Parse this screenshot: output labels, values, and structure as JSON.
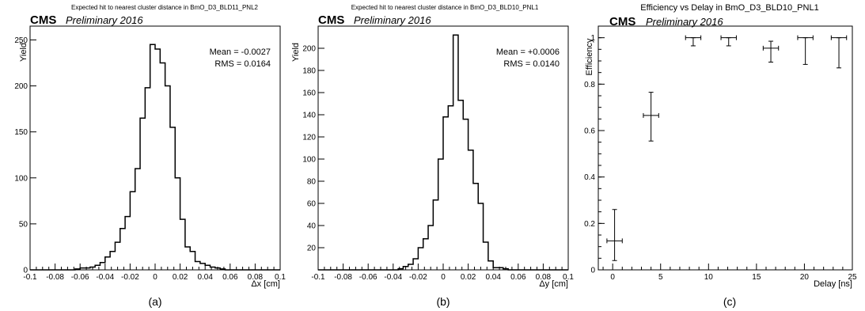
{
  "chart_data": [
    {
      "type": "histogram",
      "title": "Expected hit to nearest cluster distance in BmO_D3_BLD11_PNL2",
      "experiment": "CMS",
      "status": "Preliminary 2016",
      "xlabel": "Δx [cm]",
      "ylabel": "Yield",
      "xlim": [
        -0.1,
        0.1
      ],
      "ylim": [
        0,
        265
      ],
      "xticks": [
        "-0.1",
        "-0.08",
        "-0.06",
        "-0.04",
        "-0.02",
        "0",
        "0.02",
        "0.04",
        "0.06",
        "0.08",
        "0.1"
      ],
      "yticks": [
        "0",
        "50",
        "100",
        "150",
        "200",
        "250"
      ],
      "ytick_values": [
        0,
        50,
        100,
        150,
        200,
        250
      ],
      "stats": {
        "mean": "Mean = -0.0027",
        "rms": "RMS = 0.0164"
      },
      "bin_edges_start": -0.1,
      "bin_width": 0.004,
      "values": [
        0,
        0,
        0,
        0,
        0,
        0,
        0,
        0,
        0,
        1,
        2,
        2,
        3,
        5,
        8,
        14,
        20,
        30,
        45,
        58,
        85,
        110,
        165,
        198,
        245,
        240,
        225,
        200,
        155,
        100,
        55,
        25,
        20,
        9,
        7,
        5,
        3,
        2,
        1,
        0,
        0,
        0,
        0,
        0,
        0,
        0,
        0,
        0,
        0,
        0
      ],
      "caption": "(a)"
    },
    {
      "type": "histogram",
      "title": "Expected hit to nearest cluster distance in BmO_D3_BLD10_PNL1",
      "experiment": "CMS",
      "status": "Preliminary 2016",
      "xlabel": "Δy [cm]",
      "ylabel": "Yield",
      "xlim": [
        -0.1,
        0.1
      ],
      "ylim": [
        0,
        220
      ],
      "xticks": [
        "-0.1",
        "-0.08",
        "-0.06",
        "-0.04",
        "-0.02",
        "0",
        "0.02",
        "0.04",
        "0.06",
        "0.08",
        "0.1"
      ],
      "yticks": [
        "20",
        "40",
        "60",
        "80",
        "100",
        "120",
        "140",
        "160",
        "180",
        "200"
      ],
      "ytick_values": [
        20,
        40,
        60,
        80,
        100,
        120,
        140,
        160,
        180,
        200
      ],
      "stats": {
        "mean": "Mean = +0.0006",
        "rms": "RMS = 0.0140"
      },
      "bin_edges_start": -0.1,
      "bin_width": 0.004,
      "values": [
        0,
        0,
        0,
        0,
        0,
        0,
        0,
        0,
        0,
        0,
        0,
        0,
        0,
        0,
        0,
        0,
        1,
        3,
        5,
        10,
        20,
        28,
        40,
        63,
        100,
        138,
        148,
        212,
        153,
        136,
        108,
        78,
        60,
        25,
        8,
        2,
        2,
        1,
        0,
        0,
        0,
        0,
        0,
        0,
        0,
        0,
        0,
        0,
        0,
        0
      ],
      "caption": "(b)"
    },
    {
      "type": "scatter",
      "title": "Efficiency vs Delay in BmO_D3_BLD10_PNL1",
      "experiment": "CMS",
      "status": "Preliminary 2016",
      "xlabel": "Delay [ns]",
      "ylabel": "Efficiency",
      "xlim": [
        -1.5,
        25
      ],
      "ylim": [
        0,
        1.05
      ],
      "xticks": [
        "0",
        "5",
        "10",
        "15",
        "20",
        "25"
      ],
      "xtick_values": [
        0,
        5,
        10,
        15,
        20,
        25
      ],
      "yticks": [
        "0",
        "0.2",
        "0.4",
        "0.6",
        "0.8",
        "1"
      ],
      "ytick_values": [
        0,
        0.2,
        0.4,
        0.6,
        0.8,
        1.0
      ],
      "points": [
        {
          "x": 0.2,
          "y": 0.125,
          "xerr": 0.8,
          "ylo": 0.04,
          "yhi": 0.26
        },
        {
          "x": 4.0,
          "y": 0.665,
          "xerr": 0.8,
          "ylo": 0.555,
          "yhi": 0.765
        },
        {
          "x": 8.4,
          "y": 1.0,
          "xerr": 0.8,
          "ylo": 0.965,
          "yhi": 1.0
        },
        {
          "x": 12.1,
          "y": 1.0,
          "xerr": 0.8,
          "ylo": 0.965,
          "yhi": 1.0
        },
        {
          "x": 16.5,
          "y": 0.955,
          "xerr": 0.8,
          "ylo": 0.895,
          "yhi": 0.985
        },
        {
          "x": 20.1,
          "y": 1.0,
          "xerr": 0.8,
          "ylo": 0.885,
          "yhi": 1.0
        },
        {
          "x": 23.6,
          "y": 1.0,
          "xerr": 0.8,
          "ylo": 0.87,
          "yhi": 1.0
        }
      ],
      "caption": "(c)"
    }
  ]
}
